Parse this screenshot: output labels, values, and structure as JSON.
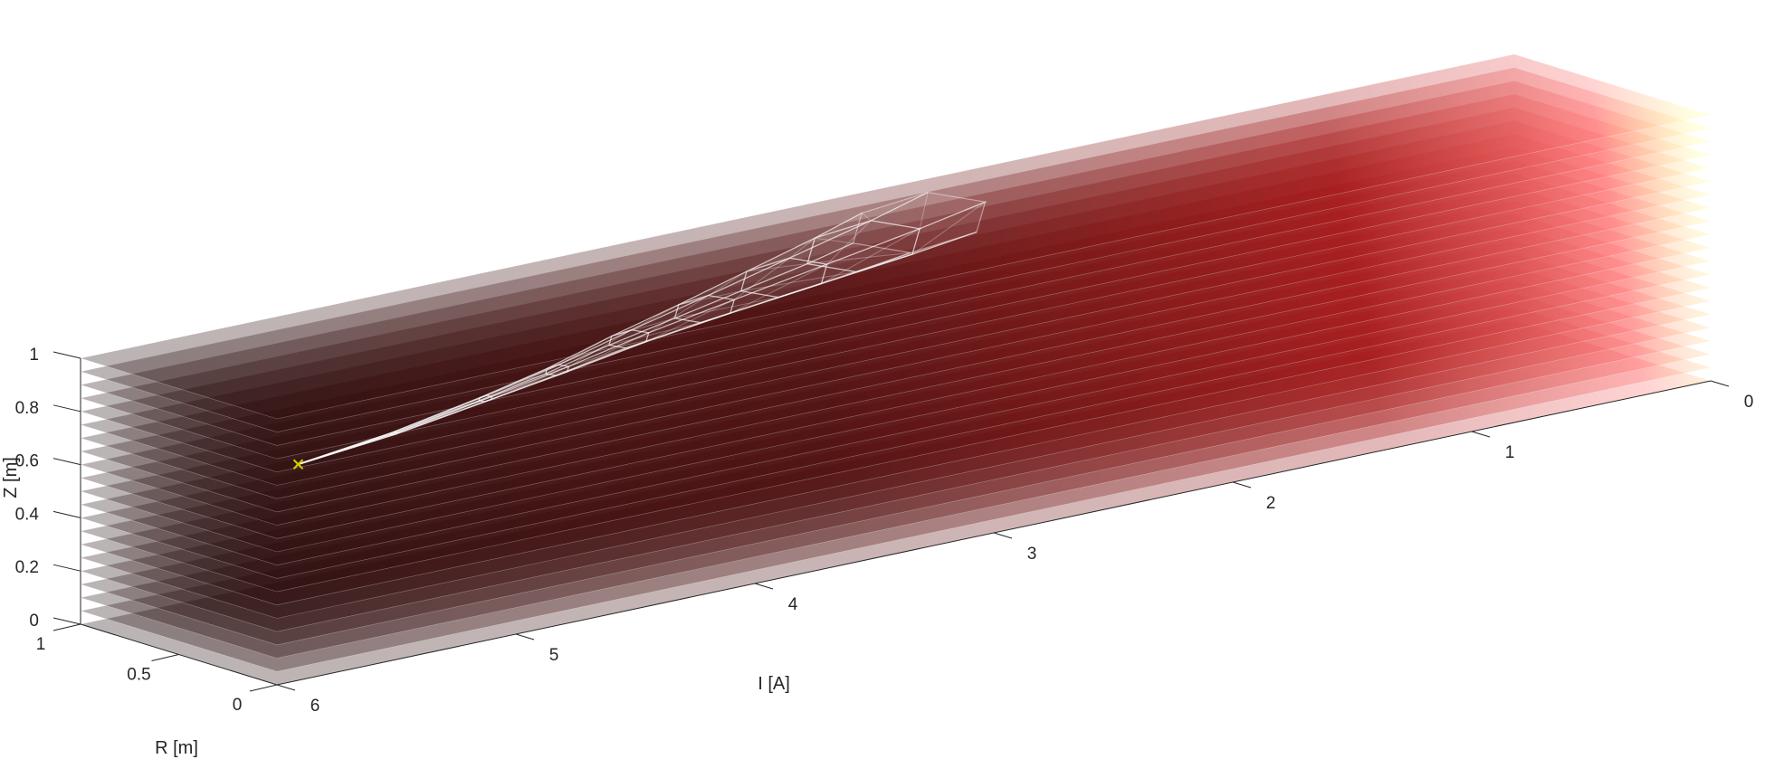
{
  "chart_data": {
    "type": "3d-surface-slices",
    "title": "",
    "xlabel": "I [A]",
    "ylabel": "R [m]",
    "zlabel": "Z [m]",
    "xlim": [
      0,
      6
    ],
    "ylim": [
      0,
      1
    ],
    "zlim": [
      0,
      1
    ],
    "x_ticks": [
      "0",
      "1",
      "2",
      "3",
      "4",
      "5",
      "6"
    ],
    "y_ticks": [
      "0",
      "0.5",
      "1"
    ],
    "z_ticks": [
      "0",
      "0.2",
      "0.4",
      "0.6",
      "0.8",
      "1"
    ],
    "slice_count": 21,
    "slice_colormap": [
      "#ffff99",
      "#ff6060",
      "#7a0a0a",
      "#1a0505"
    ],
    "marker": {
      "symbol": "x",
      "color": "#cccc00",
      "I": 5.5,
      "R": 0.5,
      "Z": 0.62
    },
    "mesh_color": "#ffffff",
    "grid": false,
    "legend": "none"
  }
}
